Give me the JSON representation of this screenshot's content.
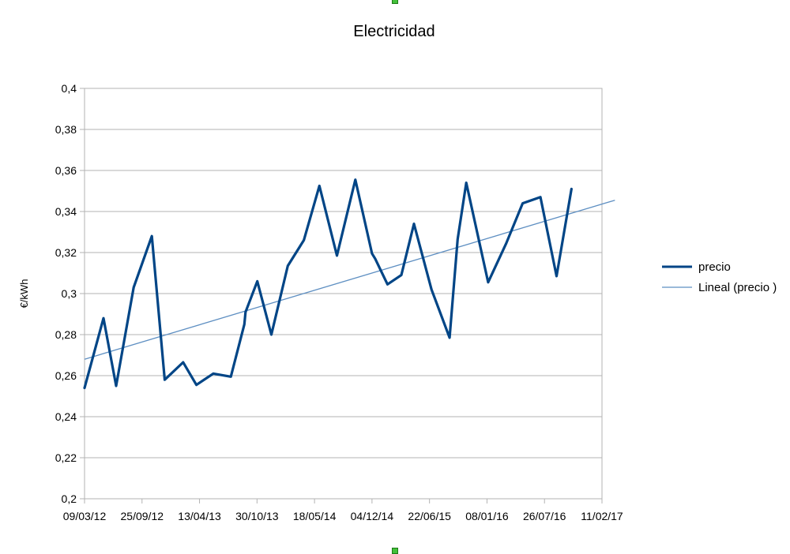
{
  "chart_data": {
    "type": "line",
    "title": "Electricidad",
    "xlabel": "",
    "ylabel": "€/kWh",
    "ylim": [
      0.2,
      0.4
    ],
    "y_ticks": [
      "0,2",
      "0,22",
      "0,24",
      "0,26",
      "0,28",
      "0,3",
      "0,32",
      "0,34",
      "0,36",
      "0,38",
      "0,4"
    ],
    "x_ticks": [
      "09/03/12",
      "25/09/12",
      "13/04/13",
      "30/10/13",
      "18/05/14",
      "04/12/14",
      "22/06/15",
      "08/01/16",
      "26/07/16",
      "11/02/17"
    ],
    "xlim": [
      "2012-03-09",
      "2017-02-11"
    ],
    "grid": true,
    "legend_position": "right",
    "series": [
      {
        "name": "precio",
        "color": "#004586",
        "x": [
          "2012-03-09",
          "2012-05-14",
          "2012-06-27",
          "2012-08-27",
          "2012-10-29",
          "2012-12-13",
          "2013-02-15",
          "2013-04-02",
          "2013-05-31",
          "2013-07-31",
          "2013-09-16",
          "2013-09-20",
          "2013-10-31",
          "2013-12-19",
          "2014-02-14",
          "2014-04-11",
          "2014-06-04",
          "2014-08-04",
          "2014-10-07",
          "2014-12-04",
          "2014-12-15",
          "2015-01-27",
          "2015-03-16",
          "2015-04-29",
          "2015-06-29",
          "2015-08-31",
          "2015-09-28",
          "2015-10-28",
          "2016-01-12",
          "2016-03-15",
          "2016-05-11",
          "2016-07-12",
          "2016-09-06",
          "2016-10-28"
        ],
        "values": [
          0.254,
          0.288,
          0.255,
          0.303,
          0.328,
          0.258,
          0.2665,
          0.2555,
          0.261,
          0.2595,
          0.285,
          0.291,
          0.306,
          0.28,
          0.3135,
          0.326,
          0.3525,
          0.3185,
          0.3555,
          0.3195,
          0.317,
          0.3045,
          0.309,
          0.334,
          0.302,
          0.2785,
          0.3265,
          0.354,
          0.3055,
          0.3245,
          0.344,
          0.347,
          0.3085,
          0.351
        ]
      },
      {
        "name": "Lineal (precio )",
        "color": "#5e8fc2",
        "type": "trendline",
        "x": [
          "2012-03-09",
          "2017-03-28"
        ],
        "values": [
          0.268,
          0.3455
        ]
      }
    ]
  },
  "markers": {
    "handle_color": "#43c03a"
  }
}
